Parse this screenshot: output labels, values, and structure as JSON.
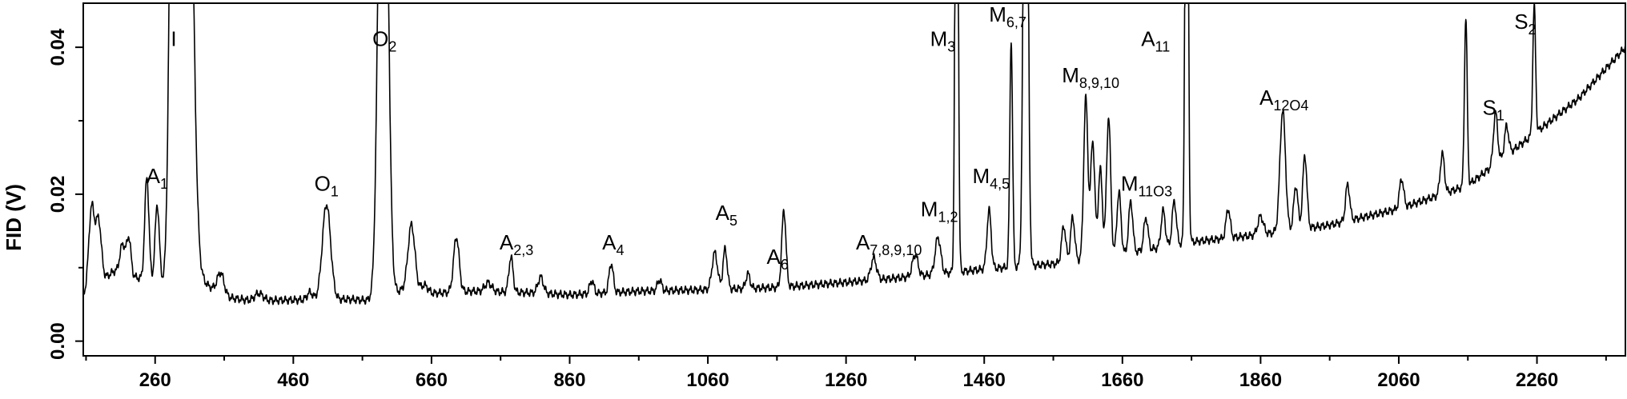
{
  "chart_data": {
    "type": "line",
    "title": "",
    "xlabel": "",
    "ylabel": "FID (V)",
    "xlim": [
      156,
      2388
    ],
    "ylim": [
      -0.002,
      0.046
    ],
    "grid": false,
    "x_ticks": [
      260,
      460,
      660,
      860,
      1060,
      1260,
      1460,
      1660,
      1860,
      2060,
      2260
    ],
    "y_ticks": [
      "0.00",
      "0.02",
      "0.04"
    ],
    "y_tick_values": [
      0.0,
      0.02,
      0.04
    ],
    "baseline": [
      [
        156,
        0.0063
      ],
      [
        200,
        0.0095
      ],
      [
        240,
        0.0085
      ],
      [
        300,
        0.0075
      ],
      [
        330,
        0.008
      ],
      [
        360,
        0.006
      ],
      [
        400,
        0.0055
      ],
      [
        460,
        0.0056
      ],
      [
        540,
        0.0057
      ],
      [
        575,
        0.0055
      ],
      [
        620,
        0.007
      ],
      [
        660,
        0.0065
      ],
      [
        720,
        0.0068
      ],
      [
        800,
        0.0066
      ],
      [
        860,
        0.0063
      ],
      [
        960,
        0.0068
      ],
      [
        1060,
        0.007
      ],
      [
        1160,
        0.0073
      ],
      [
        1260,
        0.008
      ],
      [
        1360,
        0.0088
      ],
      [
        1460,
        0.0098
      ],
      [
        1560,
        0.0105
      ],
      [
        1660,
        0.0118
      ],
      [
        1760,
        0.0135
      ],
      [
        1860,
        0.0145
      ],
      [
        1960,
        0.0158
      ],
      [
        2060,
        0.018
      ],
      [
        2160,
        0.0212
      ],
      [
        2260,
        0.0285
      ],
      [
        2320,
        0.033
      ],
      [
        2388,
        0.04
      ]
    ],
    "peaks": [
      [
        168,
        0.011,
        4
      ],
      [
        178,
        0.0085,
        4
      ],
      [
        213,
        0.004,
        4
      ],
      [
        222,
        0.005,
        3
      ],
      [
        248,
        0.014,
        3
      ],
      [
        263,
        0.0105,
        3
      ],
      [
        287,
        0.1,
        5
      ],
      [
        305,
        0.1,
        8
      ],
      [
        355,
        0.003,
        5
      ],
      [
        410,
        0.001,
        6
      ],
      [
        484,
        0.001,
        4
      ],
      [
        508,
        0.013,
        6
      ],
      [
        590,
        0.1,
        6
      ],
      [
        631,
        0.009,
        5
      ],
      [
        650,
        0.001,
        5
      ],
      [
        696,
        0.0075,
        4
      ],
      [
        742,
        0.0012,
        5
      ],
      [
        775,
        0.0048,
        3
      ],
      [
        818,
        0.0022,
        4
      ],
      [
        892,
        0.0018,
        3
      ],
      [
        920,
        0.004,
        3
      ],
      [
        990,
        0.0015,
        3
      ],
      [
        1070,
        0.005,
        4
      ],
      [
        1085,
        0.0055,
        3
      ],
      [
        1118,
        0.002,
        3
      ],
      [
        1170,
        0.0105,
        3
      ],
      [
        1300,
        0.003,
        4
      ],
      [
        1360,
        0.003,
        4
      ],
      [
        1393,
        0.005,
        4
      ],
      [
        1420,
        0.1,
        2
      ],
      [
        1467,
        0.008,
        3
      ],
      [
        1499,
        0.031,
        2
      ],
      [
        1520,
        0.1,
        3
      ],
      [
        1575,
        0.005,
        3
      ],
      [
        1588,
        0.006,
        3
      ],
      [
        1607,
        0.022,
        3
      ],
      [
        1617,
        0.016,
        3
      ],
      [
        1628,
        0.012,
        3
      ],
      [
        1640,
        0.019,
        3
      ],
      [
        1655,
        0.0085,
        3
      ],
      [
        1672,
        0.007,
        3
      ],
      [
        1694,
        0.0045,
        3
      ],
      [
        1719,
        0.005,
        3
      ],
      [
        1735,
        0.006,
        3
      ],
      [
        1753,
        0.1,
        2
      ],
      [
        1813,
        0.004,
        3
      ],
      [
        1860,
        0.0025,
        4
      ],
      [
        1892,
        0.0165,
        4
      ],
      [
        1911,
        0.006,
        3
      ],
      [
        1924,
        0.01,
        3
      ],
      [
        1986,
        0.005,
        3
      ],
      [
        2064,
        0.004,
        3
      ],
      [
        2123,
        0.0055,
        3
      ],
      [
        2157,
        0.023,
        2
      ],
      [
        2200,
        0.007,
        3
      ],
      [
        2216,
        0.004,
        3
      ],
      [
        2256,
        0.0175,
        2
      ]
    ],
    "annotations": [
      {
        "x": 263,
        "y": 0.0215,
        "base": "A",
        "sub": "1"
      },
      {
        "x": 287,
        "y": 0.0402,
        "base": "I",
        "sub": ""
      },
      {
        "x": 508,
        "y": 0.0205,
        "base": "O",
        "sub": "1"
      },
      {
        "x": 592,
        "y": 0.0402,
        "base": "O",
        "sub": "2"
      },
      {
        "x": 783,
        "y": 0.0125,
        "base": "A",
        "sub": "2,3"
      },
      {
        "x": 923,
        "y": 0.0125,
        "base": "A",
        "sub": "4"
      },
      {
        "x": 1087,
        "y": 0.0165,
        "base": "A",
        "sub": "5"
      },
      {
        "x": 1161,
        "y": 0.0105,
        "base": "A",
        "sub": "6"
      },
      {
        "x": 1322,
        "y": 0.0125,
        "base": "A",
        "sub": "7,8,9,10"
      },
      {
        "x": 1395,
        "y": 0.017,
        "base": "M",
        "sub": "1,2"
      },
      {
        "x": 1400,
        "y": 0.0402,
        "base": "M",
        "sub": "3"
      },
      {
        "x": 1470,
        "y": 0.0215,
        "base": "M",
        "sub": "4,5"
      },
      {
        "x": 1494,
        "y": 0.0435,
        "base": "M",
        "sub": "6,7"
      },
      {
        "x": 1614,
        "y": 0.0352,
        "base": "M",
        "sub": "8,9,10"
      },
      {
        "x": 1695,
        "y": 0.0205,
        "base": "M",
        "sub": "11O3"
      },
      {
        "x": 1708,
        "y": 0.0402,
        "base": "A",
        "sub": "11"
      },
      {
        "x": 1894,
        "y": 0.0322,
        "base": "A",
        "sub": "12O4"
      },
      {
        "x": 2197,
        "y": 0.0308,
        "base": "S",
        "sub": "1"
      },
      {
        "x": 2243,
        "y": 0.0425,
        "base": "S",
        "sub": "2"
      }
    ]
  }
}
